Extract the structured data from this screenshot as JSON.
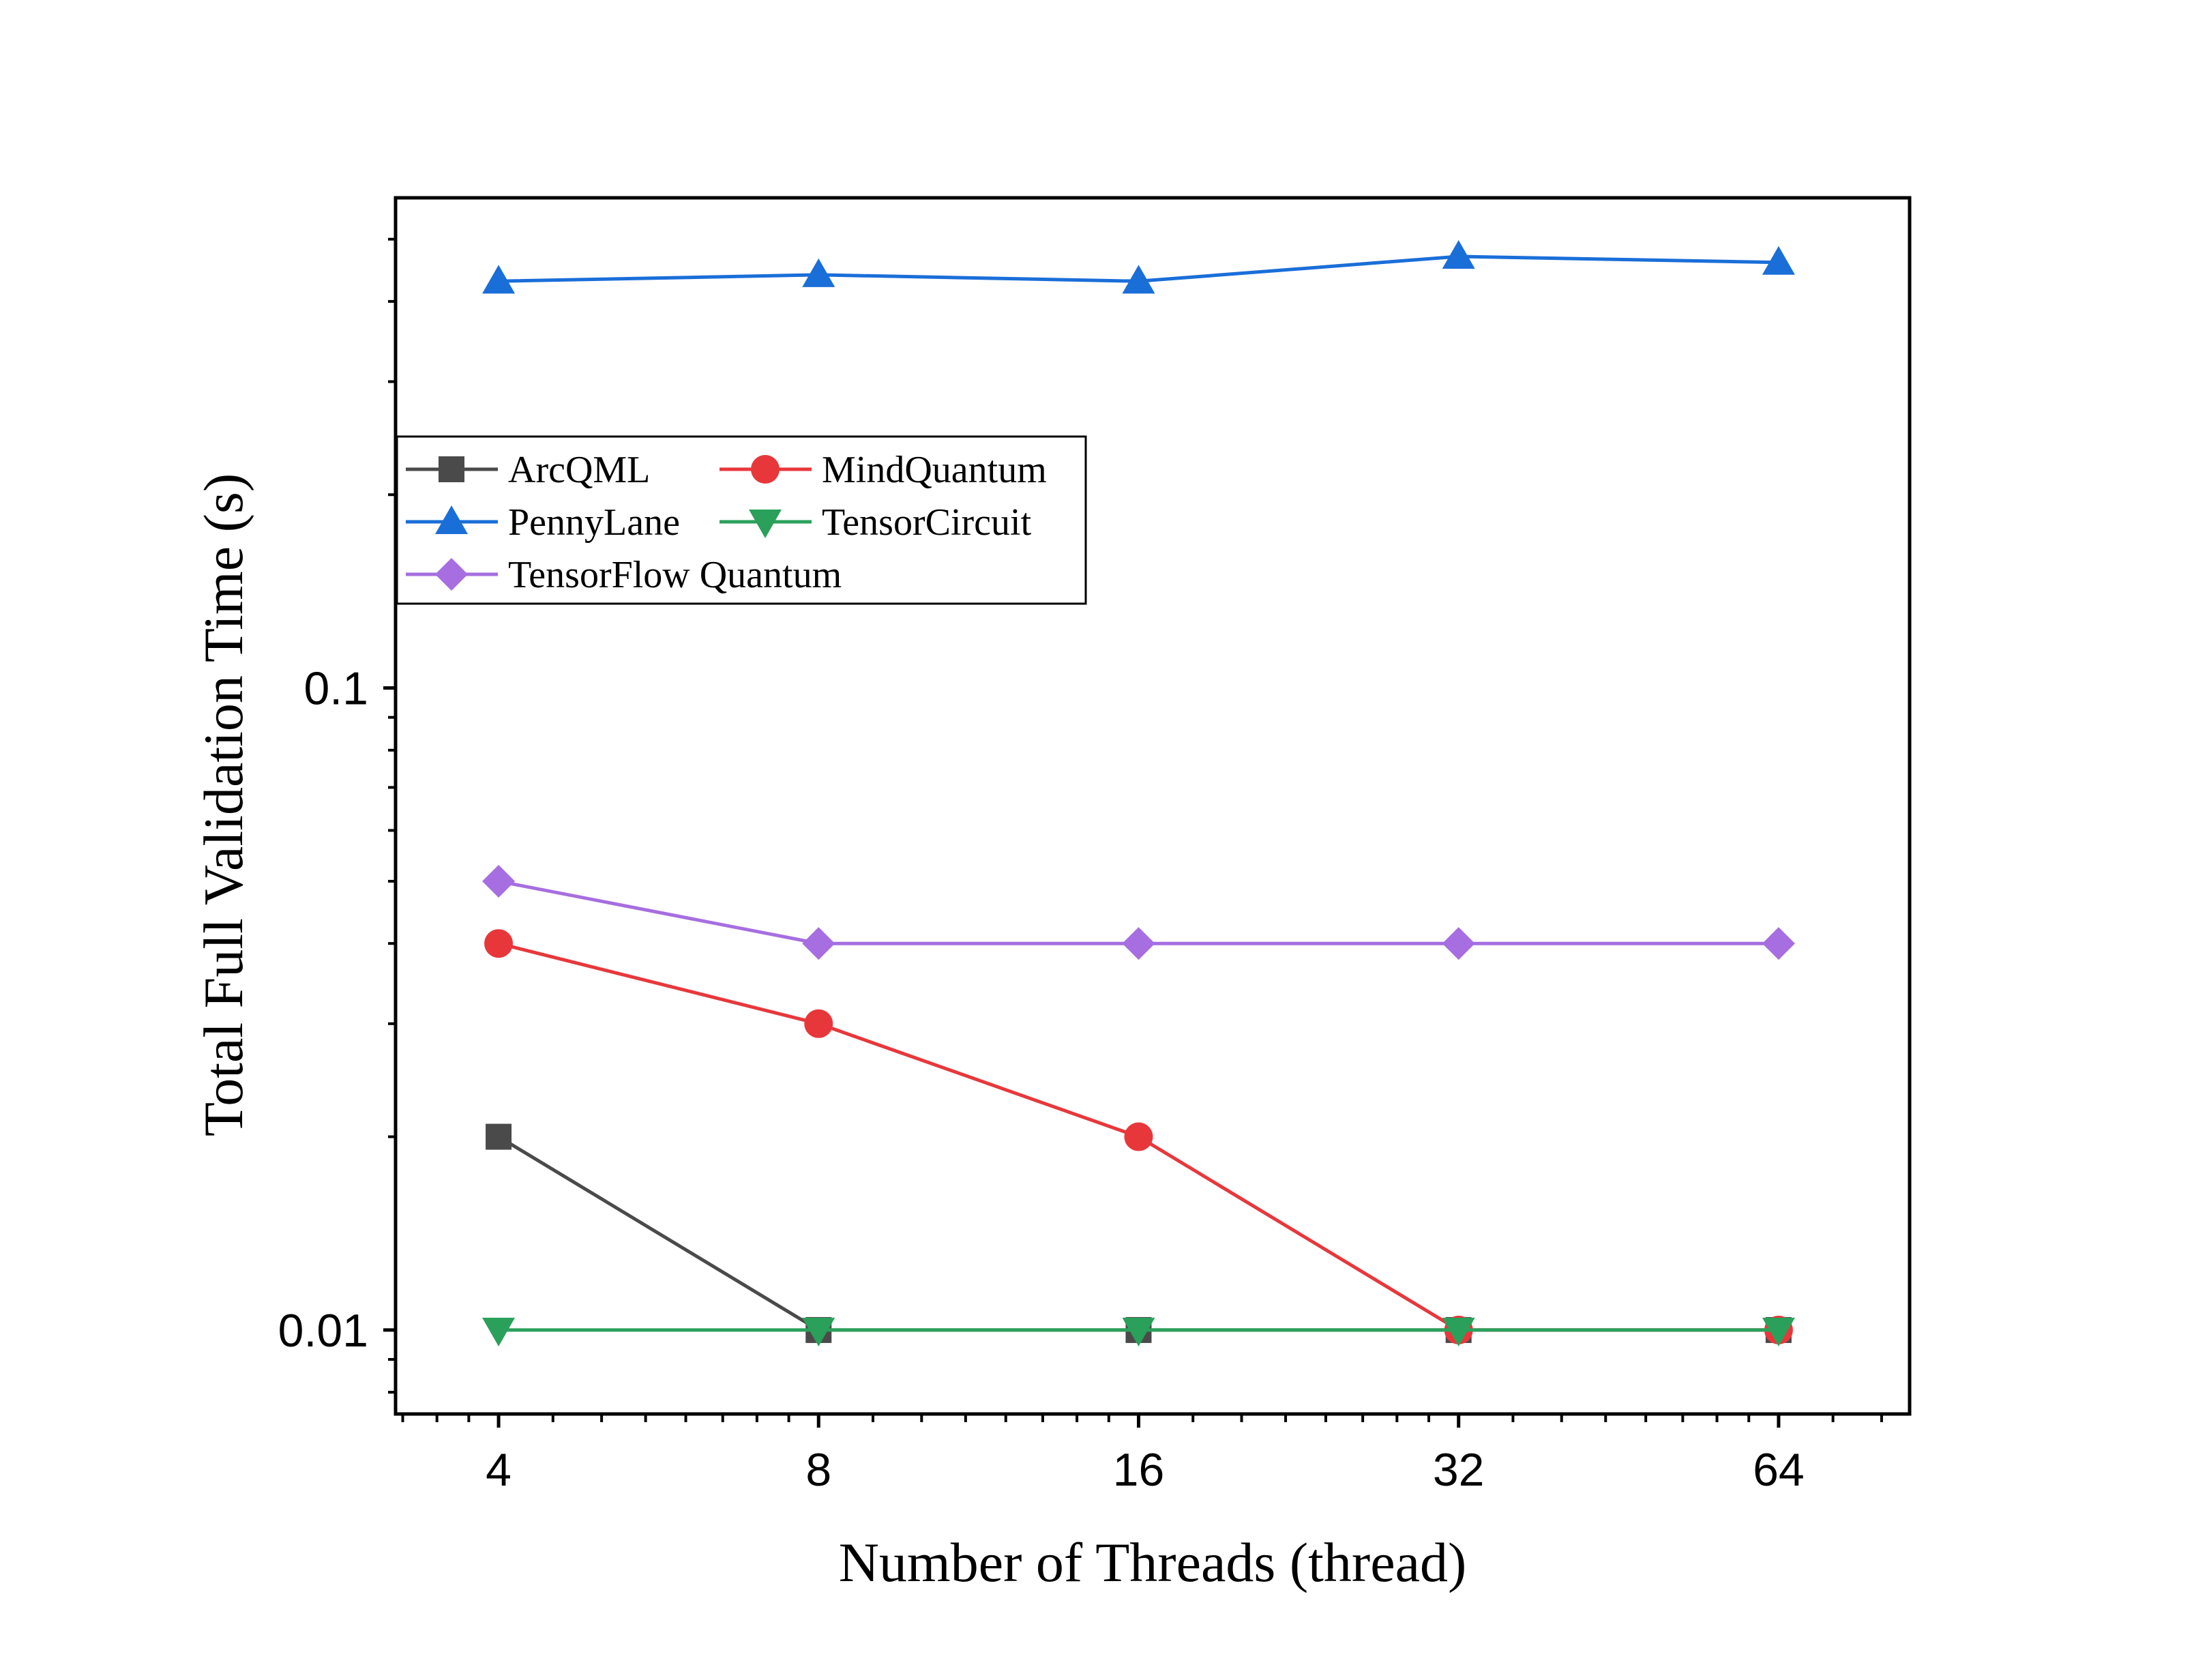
{
  "chart_data": {
    "type": "line",
    "xlabel": "Number of Threads (thread)",
    "ylabel": "Total Full Validation Time (s)",
    "x_scale": "log2",
    "y_scale": "log10",
    "x": [
      4,
      8,
      16,
      32,
      64
    ],
    "x_tick_labels": [
      "4",
      "8",
      "16",
      "32",
      "64"
    ],
    "y_tick_values": [
      0.01,
      0.1
    ],
    "y_tick_labels": [
      "0.01",
      "0.1"
    ],
    "xlim": [
      3.2,
      85
    ],
    "ylim": [
      0.0074,
      0.58
    ],
    "grid": false,
    "legend_position": "upper-left",
    "series": [
      {
        "name": "ArcQML",
        "color": "#4a4a4a",
        "marker": "square",
        "values": [
          0.02,
          0.01,
          0.01,
          0.01,
          0.01
        ]
      },
      {
        "name": "MindQuantum",
        "color": "#e8373b",
        "marker": "circle",
        "values": [
          0.04,
          0.03,
          0.02,
          0.01,
          0.01
        ]
      },
      {
        "name": "PennyLane",
        "color": "#1a6ed8",
        "marker": "triangle-up",
        "values": [
          0.43,
          0.44,
          0.43,
          0.47,
          0.46
        ]
      },
      {
        "name": "TensorCircuit",
        "color": "#2aa05a",
        "marker": "triangle-down",
        "values": [
          0.01,
          0.01,
          0.01,
          0.01,
          0.01
        ]
      },
      {
        "name": "TensorFlow Quantum",
        "color": "#a66ee0",
        "marker": "diamond",
        "values": [
          0.05,
          0.04,
          0.04,
          0.04,
          0.04
        ]
      }
    ]
  }
}
